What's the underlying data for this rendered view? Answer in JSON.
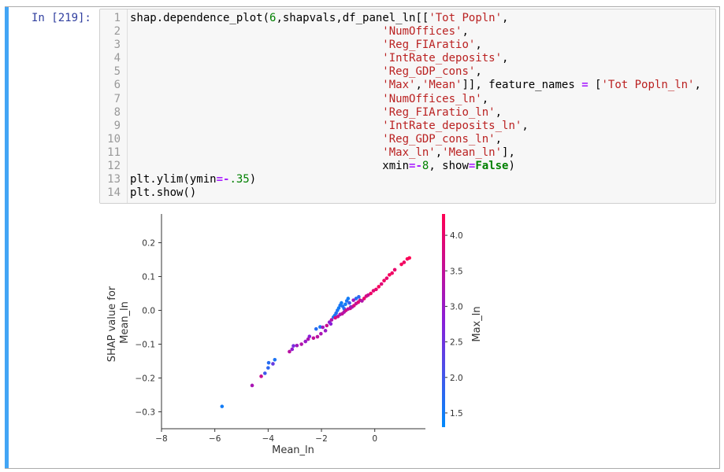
{
  "cell": {
    "prompt": "In [219]:",
    "code_lines": [
      {
        "no": "1",
        "parts": [
          [
            "",
            "shap.dependence_plot("
          ],
          [
            "n",
            "6"
          ],
          [
            "",
            ",shapvals,df_panel_ln[["
          ],
          [
            "s",
            "'Tot Popln'"
          ],
          [
            "",
            ","
          ]
        ]
      },
      {
        "no": "2",
        "parts": [
          [
            "",
            "                                      "
          ],
          [
            "s",
            "'NumOffices'"
          ],
          [
            "",
            ","
          ]
        ]
      },
      {
        "no": "3",
        "parts": [
          [
            "",
            "                                      "
          ],
          [
            "s",
            "'Reg_FIAratio'"
          ],
          [
            "",
            ","
          ]
        ]
      },
      {
        "no": "4",
        "parts": [
          [
            "",
            "                                      "
          ],
          [
            "s",
            "'IntRate_deposits'"
          ],
          [
            "",
            ","
          ]
        ]
      },
      {
        "no": "5",
        "parts": [
          [
            "",
            "                                      "
          ],
          [
            "s",
            "'Reg_GDP_cons'"
          ],
          [
            "",
            ","
          ]
        ]
      },
      {
        "no": "6",
        "parts": [
          [
            "",
            "                                      "
          ],
          [
            "s",
            "'Max'"
          ],
          [
            "",
            ","
          ],
          [
            "s",
            "'Mean'"
          ],
          [
            "",
            "]], feature_names "
          ],
          [
            "o",
            "="
          ],
          [
            "",
            " ["
          ],
          [
            "s",
            "'Tot Popln_ln'"
          ],
          [
            "",
            ","
          ]
        ]
      },
      {
        "no": "7",
        "parts": [
          [
            "",
            "                                      "
          ],
          [
            "s",
            "'NumOffices_ln'"
          ],
          [
            "",
            ","
          ]
        ]
      },
      {
        "no": "8",
        "parts": [
          [
            "",
            "                                      "
          ],
          [
            "s",
            "'Reg_FIAratio_ln'"
          ],
          [
            "",
            ","
          ]
        ]
      },
      {
        "no": "9",
        "parts": [
          [
            "",
            "                                      "
          ],
          [
            "s",
            "'IntRate_deposits_ln'"
          ],
          [
            "",
            ","
          ]
        ]
      },
      {
        "no": "10",
        "parts": [
          [
            "",
            "                                      "
          ],
          [
            "s",
            "'Reg_GDP_cons_ln'"
          ],
          [
            "",
            ","
          ]
        ]
      },
      {
        "no": "11",
        "parts": [
          [
            "",
            "                                      "
          ],
          [
            "s",
            "'Max_ln'"
          ],
          [
            "",
            ","
          ],
          [
            "s",
            "'Mean_ln'"
          ],
          [
            "",
            "],"
          ]
        ]
      },
      {
        "no": "12",
        "parts": [
          [
            "",
            "                                      xmin"
          ],
          [
            "o",
            "="
          ],
          [
            "o",
            "-"
          ],
          [
            "n",
            "8"
          ],
          [
            "",
            ", show"
          ],
          [
            "o",
            "="
          ],
          [
            "k",
            "False"
          ],
          [
            "",
            ")"
          ]
        ]
      },
      {
        "no": "13",
        "parts": [
          [
            "",
            "plt.ylim(ymin"
          ],
          [
            "o",
            "="
          ],
          [
            "o",
            "-"
          ],
          [
            "n",
            ".35"
          ],
          [
            "",
            ")"
          ]
        ]
      },
      {
        "no": "14",
        "parts": [
          [
            "",
            "plt.show()"
          ]
        ]
      }
    ]
  },
  "colors": {
    "cell_bar": "#42a5f5",
    "prompt": "#303f9f",
    "colormap_low": "#008afb",
    "colormap_mid": "#8a1ed8",
    "colormap_high": "#ff0052"
  },
  "chart_data": {
    "type": "scatter",
    "title": "",
    "xlabel": "Mean_ln",
    "ylabel_lines": [
      "SHAP value for",
      "Mean_ln"
    ],
    "colorbar_label": "Max_ln",
    "xlim": [
      -8,
      1.9
    ],
    "ylim": [
      -0.35,
      0.285
    ],
    "xticks": [
      {
        "v": -8,
        "label": "−8"
      },
      {
        "v": -6,
        "label": "−6"
      },
      {
        "v": -4,
        "label": "−4"
      },
      {
        "v": -2,
        "label": "−2"
      },
      {
        "v": 0,
        "label": "0"
      }
    ],
    "yticks": [
      {
        "v": 0.2,
        "label": "0.2"
      },
      {
        "v": 0.1,
        "label": "0.1"
      },
      {
        "v": 0.0,
        "label": "0.0"
      },
      {
        "v": -0.1,
        "label": "−0.1"
      },
      {
        "v": -0.2,
        "label": "−0.2"
      },
      {
        "v": -0.3,
        "label": "−0.3"
      }
    ],
    "colorbar": {
      "range": [
        1.3,
        4.3
      ],
      "ticks": [
        {
          "v": 4.0,
          "label": "4.0"
        },
        {
          "v": 3.5,
          "label": "3.5"
        },
        {
          "v": 3.0,
          "label": "3.0"
        },
        {
          "v": 2.5,
          "label": "2.5"
        },
        {
          "v": 2.0,
          "label": "2.0"
        },
        {
          "v": 1.5,
          "label": "1.5"
        }
      ]
    },
    "points": [
      [
        -5.73,
        -0.284,
        1.5
      ],
      [
        -4.6,
        -0.222,
        3.2
      ],
      [
        -4.26,
        -0.195,
        3.6
      ],
      [
        -4.12,
        -0.186,
        2.0
      ],
      [
        -4.0,
        -0.17,
        1.8
      ],
      [
        -3.98,
        -0.155,
        1.7
      ],
      [
        -3.82,
        -0.158,
        2.4
      ],
      [
        -3.75,
        -0.146,
        1.6
      ],
      [
        -3.2,
        -0.122,
        3.4
      ],
      [
        -3.1,
        -0.115,
        2.9
      ],
      [
        -3.05,
        -0.105,
        2.6
      ],
      [
        -2.92,
        -0.104,
        3.1
      ],
      [
        -2.75,
        -0.1,
        3.3
      ],
      [
        -2.6,
        -0.092,
        3.0
      ],
      [
        -2.45,
        -0.077,
        2.8
      ],
      [
        -2.3,
        -0.082,
        3.5
      ],
      [
        -2.15,
        -0.078,
        3.4
      ],
      [
        -2.02,
        -0.069,
        3.2
      ],
      [
        -2.2,
        -0.055,
        1.7
      ],
      [
        -2.05,
        -0.049,
        1.6
      ],
      [
        -1.95,
        -0.05,
        3.1
      ],
      [
        -1.8,
        -0.045,
        3.6
      ],
      [
        -1.7,
        -0.035,
        2.9
      ],
      [
        -1.62,
        -0.028,
        3.3
      ],
      [
        -1.55,
        -0.02,
        1.6
      ],
      [
        -1.5,
        -0.015,
        1.5
      ],
      [
        -1.45,
        -0.008,
        1.7
      ],
      [
        -1.4,
        0.0,
        1.6
      ],
      [
        -1.35,
        0.007,
        1.5
      ],
      [
        -1.3,
        0.015,
        1.6
      ],
      [
        -1.25,
        0.022,
        1.5
      ],
      [
        -1.2,
        0.012,
        1.6
      ],
      [
        -1.15,
        0.005,
        1.7
      ],
      [
        -1.1,
        0.018,
        1.5
      ],
      [
        -1.05,
        0.028,
        1.6
      ],
      [
        -1.0,
        0.035,
        1.5
      ],
      [
        -0.95,
        0.022,
        1.9
      ],
      [
        -0.9,
        0.01,
        2.2
      ],
      [
        -1.48,
        -0.022,
        3.8
      ],
      [
        -1.38,
        -0.018,
        3.6
      ],
      [
        -1.3,
        -0.012,
        3.2
      ],
      [
        -1.22,
        -0.01,
        3.5
      ],
      [
        -1.15,
        -0.005,
        3.3
      ],
      [
        -1.08,
        0.0,
        3.7
      ],
      [
        -1.0,
        0.004,
        3.4
      ],
      [
        -0.92,
        0.006,
        3.6
      ],
      [
        -0.85,
        0.01,
        3.2
      ],
      [
        -0.78,
        0.014,
        3.8
      ],
      [
        -0.7,
        0.02,
        3.5
      ],
      [
        -0.62,
        0.024,
        3.9
      ],
      [
        -0.55,
        0.03,
        3.7
      ],
      [
        -0.48,
        0.028,
        3.3
      ],
      [
        -0.4,
        0.035,
        4.0
      ],
      [
        -0.32,
        0.042,
        3.8
      ],
      [
        -0.25,
        0.045,
        3.6
      ],
      [
        -0.15,
        0.05,
        4.1
      ],
      [
        -0.05,
        0.058,
        3.9
      ],
      [
        0.05,
        0.062,
        4.0
      ],
      [
        0.15,
        0.07,
        4.2
      ],
      [
        0.25,
        0.078,
        3.9
      ],
      [
        0.35,
        0.088,
        4.1
      ],
      [
        0.45,
        0.095,
        4.0
      ],
      [
        0.55,
        0.105,
        4.2
      ],
      [
        0.65,
        0.11,
        4.1
      ],
      [
        0.75,
        0.12,
        4.0
      ],
      [
        1.0,
        0.136,
        4.2
      ],
      [
        1.1,
        0.142,
        4.1
      ],
      [
        1.3,
        0.155,
        4.3
      ],
      [
        1.22,
        0.152,
        4.2
      ],
      [
        -1.65,
        -0.04,
        2.8
      ],
      [
        -1.85,
        -0.06,
        3.0
      ],
      [
        -2.5,
        -0.085,
        3.2
      ],
      [
        -0.7,
        0.035,
        1.7
      ],
      [
        -0.6,
        0.04,
        1.8
      ],
      [
        -0.8,
        0.03,
        3.0
      ]
    ]
  }
}
